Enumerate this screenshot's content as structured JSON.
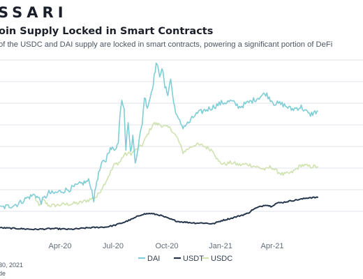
{
  "header": {
    "logo_text": "SSARI",
    "title": "oin Supply Locked in Smart Contracts",
    "subtitle": "of the USDC and DAI supply are locked in smart contracts, powering a significant portion of DeFi"
  },
  "footer": {
    "date_line": "30, 2021",
    "source_line": "de"
  },
  "colors": {
    "DAI": "#7fcdd5",
    "USDT": "#24354a",
    "USDC": "#cfe2b0",
    "grid": "#dfe3e8",
    "tick_text": "#5f6b78"
  },
  "chart_data": {
    "type": "line",
    "xlabel": "",
    "ylabel": "",
    "x_ticks": [
      "Apr-20",
      "Jul-20",
      "Oct-20",
      "Jan-21",
      "Apr-21"
    ],
    "grid": true,
    "legend_position": "bottom-center",
    "series": [
      {
        "name": "DAI",
        "points": [
          [
            "2020-01-01",
            0.28
          ],
          [
            "2020-01-15",
            0.3
          ],
          [
            "2020-02-01",
            0.33
          ],
          [
            "2020-02-15",
            0.4
          ],
          [
            "2020-03-01",
            0.45
          ],
          [
            "2020-03-12",
            0.36
          ],
          [
            "2020-03-25",
            0.47
          ],
          [
            "2020-04-01",
            0.46
          ],
          [
            "2020-04-15",
            0.49
          ],
          [
            "2020-05-01",
            0.52
          ],
          [
            "2020-05-15",
            0.57
          ],
          [
            "2020-06-01",
            0.62
          ],
          [
            "2020-06-05",
            0.55
          ],
          [
            "2020-06-10",
            0.38
          ],
          [
            "2020-06-15",
            0.62
          ],
          [
            "2020-06-20",
            0.75
          ],
          [
            "2020-06-25",
            0.85
          ],
          [
            "2020-07-01",
            0.88
          ],
          [
            "2020-07-05",
            1.0
          ],
          [
            "2020-07-10",
            1.02
          ],
          [
            "2020-07-15",
            1.02
          ],
          [
            "2020-07-22",
            1.09
          ],
          [
            "2020-07-25",
            1.48
          ],
          [
            "2020-07-28",
            1.65
          ],
          [
            "2020-08-01",
            1.55
          ],
          [
            "2020-08-04",
            1.02
          ],
          [
            "2020-08-08",
            1.38
          ],
          [
            "2020-08-12",
            0.96
          ],
          [
            "2020-08-16",
            1.18
          ],
          [
            "2020-08-20",
            0.85
          ],
          [
            "2020-08-25",
            1.05
          ],
          [
            "2020-09-01",
            1.35
          ],
          [
            "2020-09-05",
            1.68
          ],
          [
            "2020-09-10",
            1.55
          ],
          [
            "2020-09-15",
            1.68
          ],
          [
            "2020-09-20",
            1.85
          ],
          [
            "2020-09-25",
            2.1
          ],
          [
            "2020-10-01",
            1.95
          ],
          [
            "2020-10-05",
            2.05
          ],
          [
            "2020-10-10",
            1.8
          ],
          [
            "2020-10-15",
            1.72
          ],
          [
            "2020-10-20",
            1.9
          ],
          [
            "2020-10-25",
            1.6
          ],
          [
            "2020-11-01",
            1.4
          ],
          [
            "2020-11-10",
            1.3
          ],
          [
            "2020-11-20",
            1.35
          ],
          [
            "2020-12-01",
            1.45
          ],
          [
            "2020-12-15",
            1.5
          ],
          [
            "2021-01-01",
            1.55
          ],
          [
            "2021-01-15",
            1.6
          ],
          [
            "2021-02-01",
            1.62
          ],
          [
            "2021-02-15",
            1.55
          ],
          [
            "2021-03-01",
            1.6
          ],
          [
            "2021-03-15",
            1.65
          ],
          [
            "2021-04-01",
            1.72
          ],
          [
            "2021-04-15",
            1.6
          ],
          [
            "2021-05-01",
            1.58
          ],
          [
            "2021-05-15",
            1.52
          ],
          [
            "2021-06-01",
            1.55
          ],
          [
            "2021-06-15",
            1.45
          ],
          [
            "2021-06-30",
            1.5
          ]
        ]
      },
      {
        "name": "USDT",
        "points": [
          [
            "2020-01-01",
            0.03
          ],
          [
            "2020-02-01",
            0.02
          ],
          [
            "2020-03-01",
            0.01
          ],
          [
            "2020-04-01",
            0.02
          ],
          [
            "2020-05-01",
            0.01
          ],
          [
            "2020-06-01",
            0.03
          ],
          [
            "2020-07-01",
            0.04
          ],
          [
            "2020-07-15",
            0.06
          ],
          [
            "2020-08-01",
            0.1
          ],
          [
            "2020-08-15",
            0.14
          ],
          [
            "2020-09-01",
            0.2
          ],
          [
            "2020-09-15",
            0.21
          ],
          [
            "2020-10-01",
            0.19
          ],
          [
            "2020-10-15",
            0.15
          ],
          [
            "2020-11-01",
            0.11
          ],
          [
            "2020-11-15",
            0.1
          ],
          [
            "2020-12-01",
            0.09
          ],
          [
            "2020-12-15",
            0.09
          ],
          [
            "2021-01-01",
            0.08
          ],
          [
            "2021-01-15",
            0.12
          ],
          [
            "2021-02-01",
            0.15
          ],
          [
            "2021-02-15",
            0.18
          ],
          [
            "2021-03-01",
            0.21
          ],
          [
            "2021-03-10",
            0.26
          ],
          [
            "2021-03-20",
            0.29
          ],
          [
            "2021-04-01",
            0.32
          ],
          [
            "2021-04-10",
            0.3
          ],
          [
            "2021-04-20",
            0.34
          ],
          [
            "2021-05-01",
            0.35
          ],
          [
            "2021-05-15",
            0.37
          ],
          [
            "2021-06-01",
            0.39
          ],
          [
            "2021-06-15",
            0.41
          ],
          [
            "2021-06-30",
            0.41
          ]
        ]
      },
      {
        "name": "USDC",
        "points": [
          [
            "2020-03-01",
            0.41
          ],
          [
            "2020-03-08",
            0.3
          ],
          [
            "2020-03-15",
            0.38
          ],
          [
            "2020-03-20",
            0.34
          ],
          [
            "2020-03-25",
            0.31
          ],
          [
            "2020-04-01",
            0.31
          ],
          [
            "2020-04-15",
            0.32
          ],
          [
            "2020-05-01",
            0.33
          ],
          [
            "2020-05-15",
            0.34
          ],
          [
            "2020-06-01",
            0.38
          ],
          [
            "2020-06-15",
            0.42
          ],
          [
            "2020-07-01",
            0.62
          ],
          [
            "2020-07-15",
            0.82
          ],
          [
            "2020-07-25",
            0.86
          ],
          [
            "2020-08-01",
            0.95
          ],
          [
            "2020-08-15",
            0.97
          ],
          [
            "2020-09-01",
            1.07
          ],
          [
            "2020-09-10",
            1.2
          ],
          [
            "2020-09-20",
            1.34
          ],
          [
            "2020-10-01",
            1.33
          ],
          [
            "2020-10-10",
            1.3
          ],
          [
            "2020-10-20",
            1.28
          ],
          [
            "2020-11-01",
            1.15
          ],
          [
            "2020-11-10",
            0.98
          ],
          [
            "2020-11-20",
            1.03
          ],
          [
            "2020-12-01",
            1.08
          ],
          [
            "2020-12-15",
            1.06
          ],
          [
            "2021-01-01",
            1.0
          ],
          [
            "2021-01-10",
            0.86
          ],
          [
            "2021-01-20",
            0.83
          ],
          [
            "2021-02-01",
            0.85
          ],
          [
            "2021-02-15",
            0.82
          ],
          [
            "2021-03-01",
            0.83
          ],
          [
            "2021-03-15",
            0.8
          ],
          [
            "2021-04-01",
            0.76
          ],
          [
            "2021-04-10",
            0.8
          ],
          [
            "2021-04-20",
            0.74
          ],
          [
            "2021-05-01",
            0.7
          ],
          [
            "2021-05-15",
            0.72
          ],
          [
            "2021-06-01",
            0.82
          ],
          [
            "2021-06-15",
            0.8
          ],
          [
            "2021-06-30",
            0.8
          ]
        ]
      }
    ]
  }
}
